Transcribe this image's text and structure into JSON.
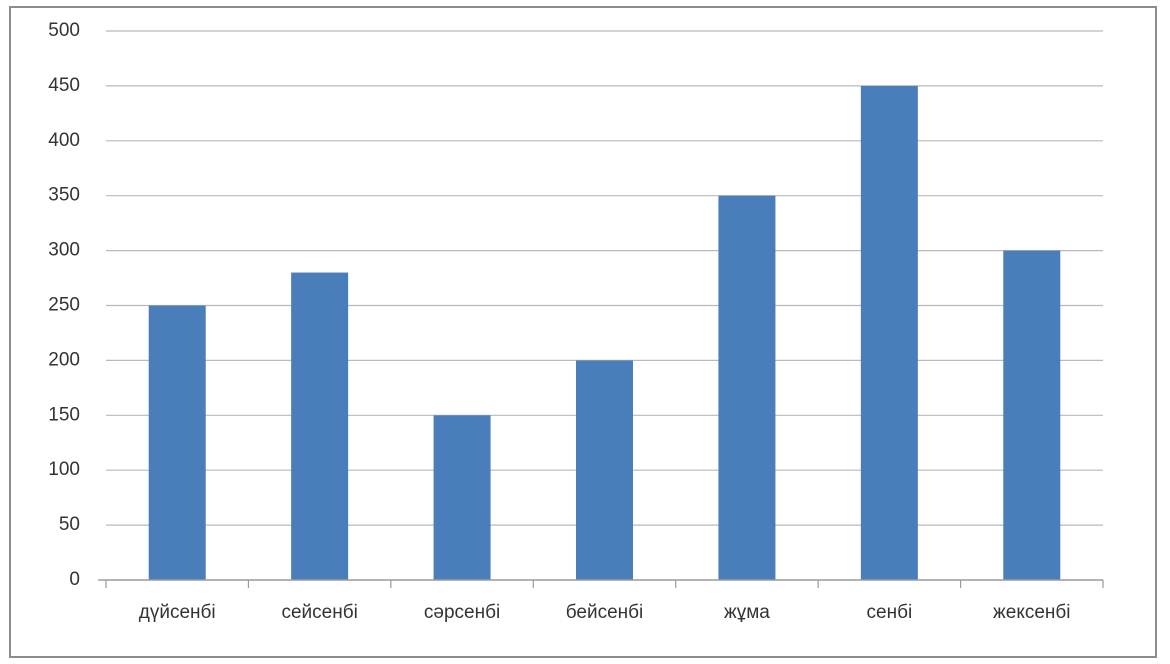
{
  "chart_data": {
    "type": "bar",
    "categories": [
      "дүйсенбі",
      "сейсенбі",
      "сәрсенбі",
      "бейсенбі",
      "жұма",
      "сенбі",
      "жексенбі"
    ],
    "values": [
      250,
      280,
      150,
      200,
      350,
      450,
      300
    ],
    "ylim": [
      0,
      500
    ],
    "yticks": [
      0,
      50,
      100,
      150,
      200,
      250,
      300,
      350,
      400,
      450,
      500
    ],
    "grid": true,
    "title": "",
    "xlabel": "",
    "ylabel": "",
    "colors": {
      "bar": "#4a7ebb"
    }
  }
}
